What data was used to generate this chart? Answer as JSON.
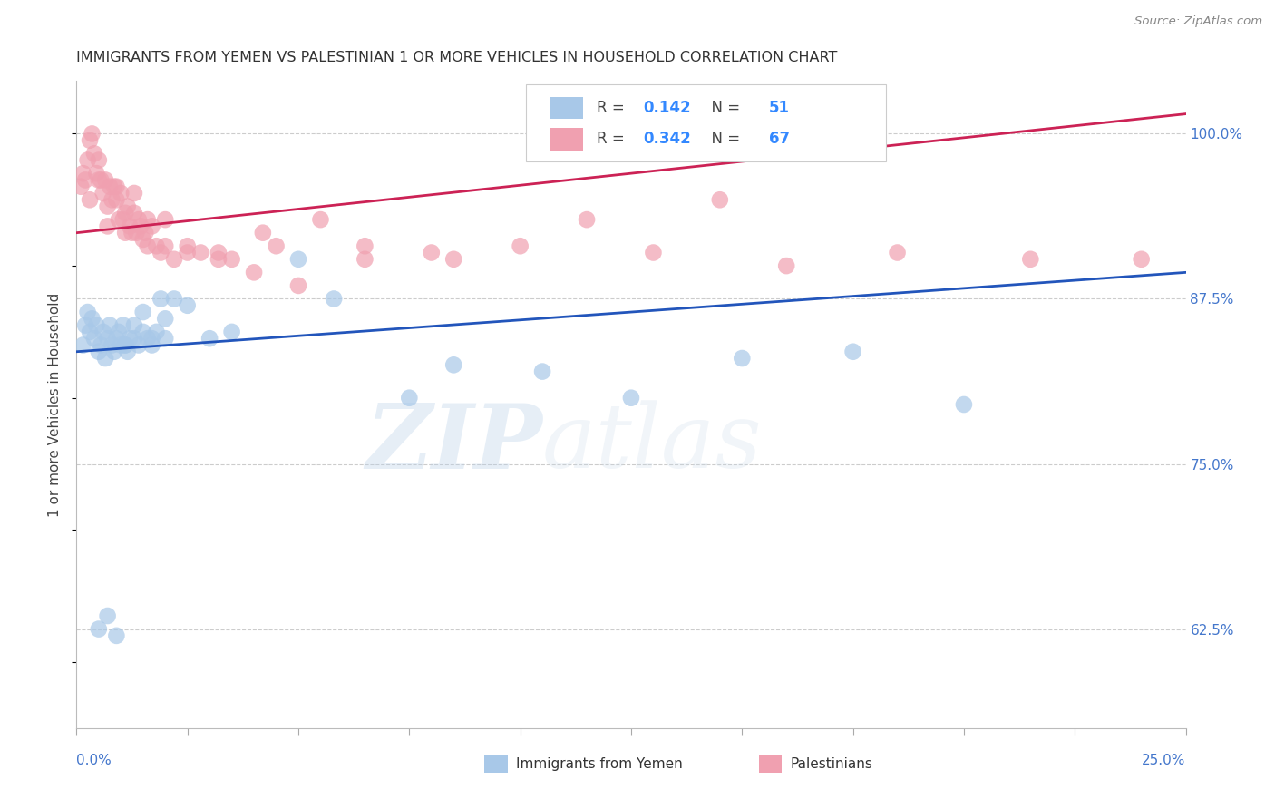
{
  "title": "IMMIGRANTS FROM YEMEN VS PALESTINIAN 1 OR MORE VEHICLES IN HOUSEHOLD CORRELATION CHART",
  "source": "Source: ZipAtlas.com",
  "ylabel": "1 or more Vehicles in Household",
  "yticks": [
    62.5,
    75.0,
    87.5,
    100.0
  ],
  "ytick_labels": [
    "62.5%",
    "75.0%",
    "87.5%",
    "100.0%"
  ],
  "xmin": 0.0,
  "xmax": 25.0,
  "ymin": 55.0,
  "ymax": 104.0,
  "blue_color": "#a8c8e8",
  "pink_color": "#f0a0b0",
  "blue_line_color": "#2255bb",
  "pink_line_color": "#cc2255",
  "ytick_color": "#4477cc",
  "xtick_color": "#4477cc",
  "watermark_zip": "ZIP",
  "watermark_atlas": "atlas",
  "blue_label": "Immigrants from Yemen",
  "pink_label": "Palestinians",
  "legend_R_blue": "0.142",
  "legend_N_blue": "51",
  "legend_R_pink": "0.342",
  "legend_N_pink": "67",
  "blue_line_y0": 83.5,
  "blue_line_y1": 89.5,
  "pink_line_y0": 92.5,
  "pink_line_y1": 101.5,
  "blue_x": [
    0.15,
    0.2,
    0.25,
    0.3,
    0.35,
    0.4,
    0.45,
    0.5,
    0.55,
    0.6,
    0.65,
    0.7,
    0.75,
    0.8,
    0.85,
    0.9,
    0.95,
    1.0,
    1.05,
    1.1,
    1.15,
    1.2,
    1.3,
    1.4,
    1.5,
    1.6,
    1.7,
    1.8,
    1.9,
    2.0,
    2.2,
    2.5,
    3.0,
    3.5,
    5.0,
    5.8,
    7.5,
    8.5,
    10.5,
    12.5,
    15.0,
    17.5,
    20.0,
    0.5,
    0.7,
    0.9,
    1.1,
    1.3,
    1.5,
    1.7,
    2.0
  ],
  "blue_y": [
    84.0,
    85.5,
    86.5,
    85.0,
    86.0,
    84.5,
    85.5,
    83.5,
    84.0,
    85.0,
    83.0,
    84.5,
    85.5,
    84.0,
    83.5,
    84.5,
    85.0,
    84.0,
    85.5,
    84.0,
    83.5,
    84.5,
    85.5,
    84.0,
    86.5,
    84.5,
    84.0,
    85.0,
    87.5,
    86.0,
    87.5,
    87.0,
    84.5,
    85.0,
    90.5,
    87.5,
    80.0,
    82.5,
    82.0,
    80.0,
    83.0,
    83.5,
    79.5,
    62.5,
    63.5,
    62.0,
    84.0,
    84.5,
    85.0,
    84.5,
    84.5
  ],
  "pink_x": [
    0.1,
    0.15,
    0.2,
    0.25,
    0.3,
    0.35,
    0.4,
    0.45,
    0.5,
    0.55,
    0.6,
    0.65,
    0.7,
    0.75,
    0.8,
    0.85,
    0.9,
    0.95,
    1.0,
    1.05,
    1.1,
    1.15,
    1.2,
    1.25,
    1.3,
    1.35,
    1.4,
    1.45,
    1.5,
    1.55,
    1.6,
    1.7,
    1.8,
    1.9,
    2.0,
    2.2,
    2.5,
    2.8,
    3.2,
    3.5,
    4.0,
    4.5,
    5.0,
    5.5,
    6.5,
    8.0,
    10.0,
    13.0,
    16.0,
    18.5,
    21.5,
    24.0,
    0.3,
    0.5,
    0.7,
    0.9,
    1.1,
    1.3,
    1.6,
    2.0,
    2.5,
    3.2,
    4.2,
    6.5,
    8.5,
    11.5,
    14.5
  ],
  "pink_y": [
    96.0,
    97.0,
    96.5,
    98.0,
    99.5,
    100.0,
    98.5,
    97.0,
    98.0,
    96.5,
    95.5,
    96.5,
    94.5,
    96.0,
    95.0,
    96.0,
    95.0,
    93.5,
    95.5,
    93.5,
    92.5,
    94.5,
    93.0,
    92.5,
    94.0,
    92.5,
    93.5,
    93.0,
    92.0,
    92.5,
    91.5,
    93.0,
    91.5,
    91.0,
    93.5,
    90.5,
    91.5,
    91.0,
    91.0,
    90.5,
    89.5,
    91.5,
    88.5,
    93.5,
    90.5,
    91.0,
    91.5,
    91.0,
    90.0,
    91.0,
    90.5,
    90.5,
    95.0,
    96.5,
    93.0,
    96.0,
    94.0,
    95.5,
    93.5,
    91.5,
    91.0,
    90.5,
    92.5,
    91.5,
    90.5,
    93.5,
    95.0
  ]
}
